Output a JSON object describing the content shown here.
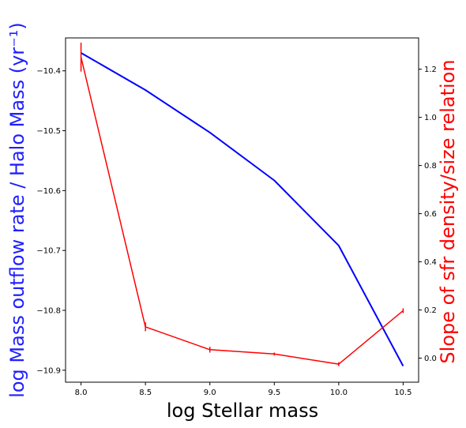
{
  "chart_data": {
    "type": "line",
    "x_axis": {
      "label": "log Stellar mass",
      "range": [
        7.88,
        10.62
      ],
      "ticks": [
        8.0,
        8.5,
        9.0,
        9.5,
        10.0,
        10.5
      ],
      "tick_labels": [
        "8.0",
        "8.5",
        "9.0",
        "9.5",
        "10.0",
        "10.5"
      ]
    },
    "y_left": {
      "label": "log Mass outflow rate / Halo Mass (yr⁻¹)",
      "range": [
        -10.92,
        -10.345
      ],
      "ticks": [
        -10.9,
        -10.8,
        -10.7,
        -10.6,
        -10.5,
        -10.4
      ],
      "tick_labels": [
        "−10.9",
        "−10.8",
        "−10.7",
        "−10.6",
        "−10.5",
        "−10.4"
      ],
      "color": "#1f1fff"
    },
    "y_right": {
      "label": "Slope of sfr density/size relation",
      "range": [
        -0.1,
        1.33
      ],
      "ticks": [
        0.0,
        0.2,
        0.4,
        0.6,
        0.8,
        1.0,
        1.2
      ],
      "tick_labels": [
        "0.0",
        "0.2",
        "0.4",
        "0.6",
        "0.8",
        "1.0",
        "1.2"
      ],
      "color": "#ff0000"
    },
    "series": [
      {
        "axis": "left",
        "color": "#0000ff",
        "x": [
          8.0,
          8.5,
          9.0,
          9.5,
          10.0,
          10.5
        ],
        "y": [
          -10.37,
          -10.432,
          -10.503,
          -10.583,
          -10.692,
          -10.893
        ]
      },
      {
        "axis": "right",
        "color": "#ff0000",
        "x": [
          8.0,
          8.5,
          9.0,
          9.5,
          10.0,
          10.5
        ],
        "y": [
          1.25,
          0.13,
          0.035,
          0.017,
          -0.025,
          0.197
        ],
        "yerr": [
          0.06,
          0.018,
          0.012,
          0.006,
          0.008,
          0.01
        ]
      }
    ],
    "grid": false,
    "legend": "none"
  }
}
